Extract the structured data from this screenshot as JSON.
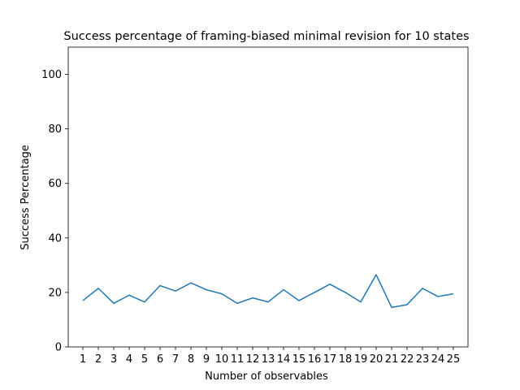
{
  "chart_data": {
    "type": "line",
    "title": "Success percentage of framing-biased minimal revision for 10 states",
    "xlabel": "Number of observables",
    "ylabel": "Success Percentage",
    "x": [
      1,
      2,
      3,
      4,
      5,
      6,
      7,
      8,
      9,
      10,
      11,
      12,
      13,
      14,
      15,
      16,
      17,
      18,
      19,
      20,
      21,
      22,
      23,
      24,
      25
    ],
    "series": [
      {
        "values": [
          17.0,
          21.5,
          16.0,
          19.0,
          16.5,
          22.5,
          20.5,
          23.5,
          21.0,
          19.5,
          16.0,
          18.0,
          16.5,
          21.0,
          17.0,
          20.0,
          23.0,
          20.0,
          16.5,
          26.5,
          14.5,
          15.5,
          21.5,
          18.5,
          19.5
        ],
        "color": "#1f77b4"
      }
    ],
    "xlim": [
      0.05,
      25.95
    ],
    "ylim": [
      0,
      110
    ],
    "yticks": [
      0,
      20,
      40,
      60,
      80,
      100
    ],
    "grid": false,
    "legend": "none"
  }
}
